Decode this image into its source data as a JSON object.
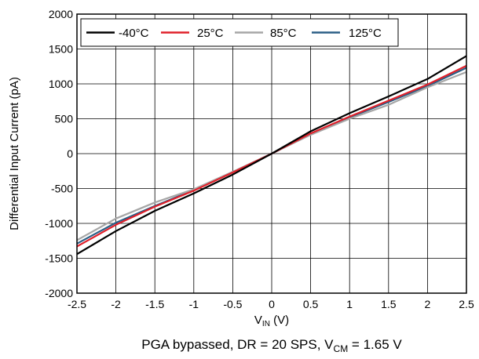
{
  "chart_data": {
    "type": "line",
    "xlabel": {
      "main": "V",
      "sub": "IN",
      "unit": " (V)"
    },
    "ylabel": "Differential Input Current (pA)",
    "caption": {
      "pre": "PGA bypassed, DR = 20 SPS, V",
      "sub": "CM",
      "post": " = 1.65 V"
    },
    "xlim": [
      -2.5,
      2.5
    ],
    "ylim": [
      -2000,
      2000
    ],
    "xticks": [
      -2.5,
      -2,
      -1.5,
      -1,
      -0.5,
      0,
      0.5,
      1,
      1.5,
      2,
      2.5
    ],
    "xtick_labels": [
      "-2.5",
      "-2",
      "-1.5",
      "-1",
      "-0.5",
      "0",
      "0.5",
      "1",
      "1.5",
      "2",
      "2.5"
    ],
    "yticks": [
      -2000,
      -1500,
      -1000,
      -500,
      0,
      500,
      1000,
      1500,
      2000
    ],
    "ytick_labels": [
      "-2000",
      "-1500",
      "-1000",
      "-500",
      "0",
      "500",
      "1000",
      "1500",
      "2000"
    ],
    "grid": true,
    "legend_position": "top-left",
    "series": [
      {
        "name": "-40°C",
        "color": "#000000",
        "x": [
          -2.5,
          -2,
          -1.5,
          -1,
          -0.5,
          0,
          0.5,
          1,
          1.5,
          2,
          2.5
        ],
        "y": [
          -1440,
          -1110,
          -820,
          -570,
          -300,
          0,
          320,
          580,
          820,
          1070,
          1400
        ]
      },
      {
        "name": "25°C",
        "color": "#e0202a",
        "x": [
          -2.5,
          -2,
          -1.5,
          -1,
          -0.5,
          0,
          0.5,
          1,
          1.5,
          2,
          2.5
        ],
        "y": [
          -1330,
          -1020,
          -760,
          -530,
          -270,
          0,
          290,
          530,
          760,
          990,
          1260
        ]
      },
      {
        "name": "85°C",
        "color": "#a6a6a6",
        "x": [
          -2.5,
          -2,
          -1.5,
          -1,
          -0.5,
          0,
          0.5,
          1,
          1.5,
          2,
          2.5
        ],
        "y": [
          -1240,
          -930,
          -700,
          -510,
          -260,
          0,
          270,
          500,
          700,
          950,
          1170
        ]
      },
      {
        "name": "125°C",
        "color": "#2b5f86",
        "x": [
          -2.5,
          -2,
          -1.5,
          -1,
          -0.5,
          0,
          0.5,
          1,
          1.5,
          2,
          2.5
        ],
        "y": [
          -1290,
          -990,
          -750,
          -520,
          -265,
          0,
          280,
          520,
          740,
          970,
          1230
        ]
      }
    ]
  }
}
